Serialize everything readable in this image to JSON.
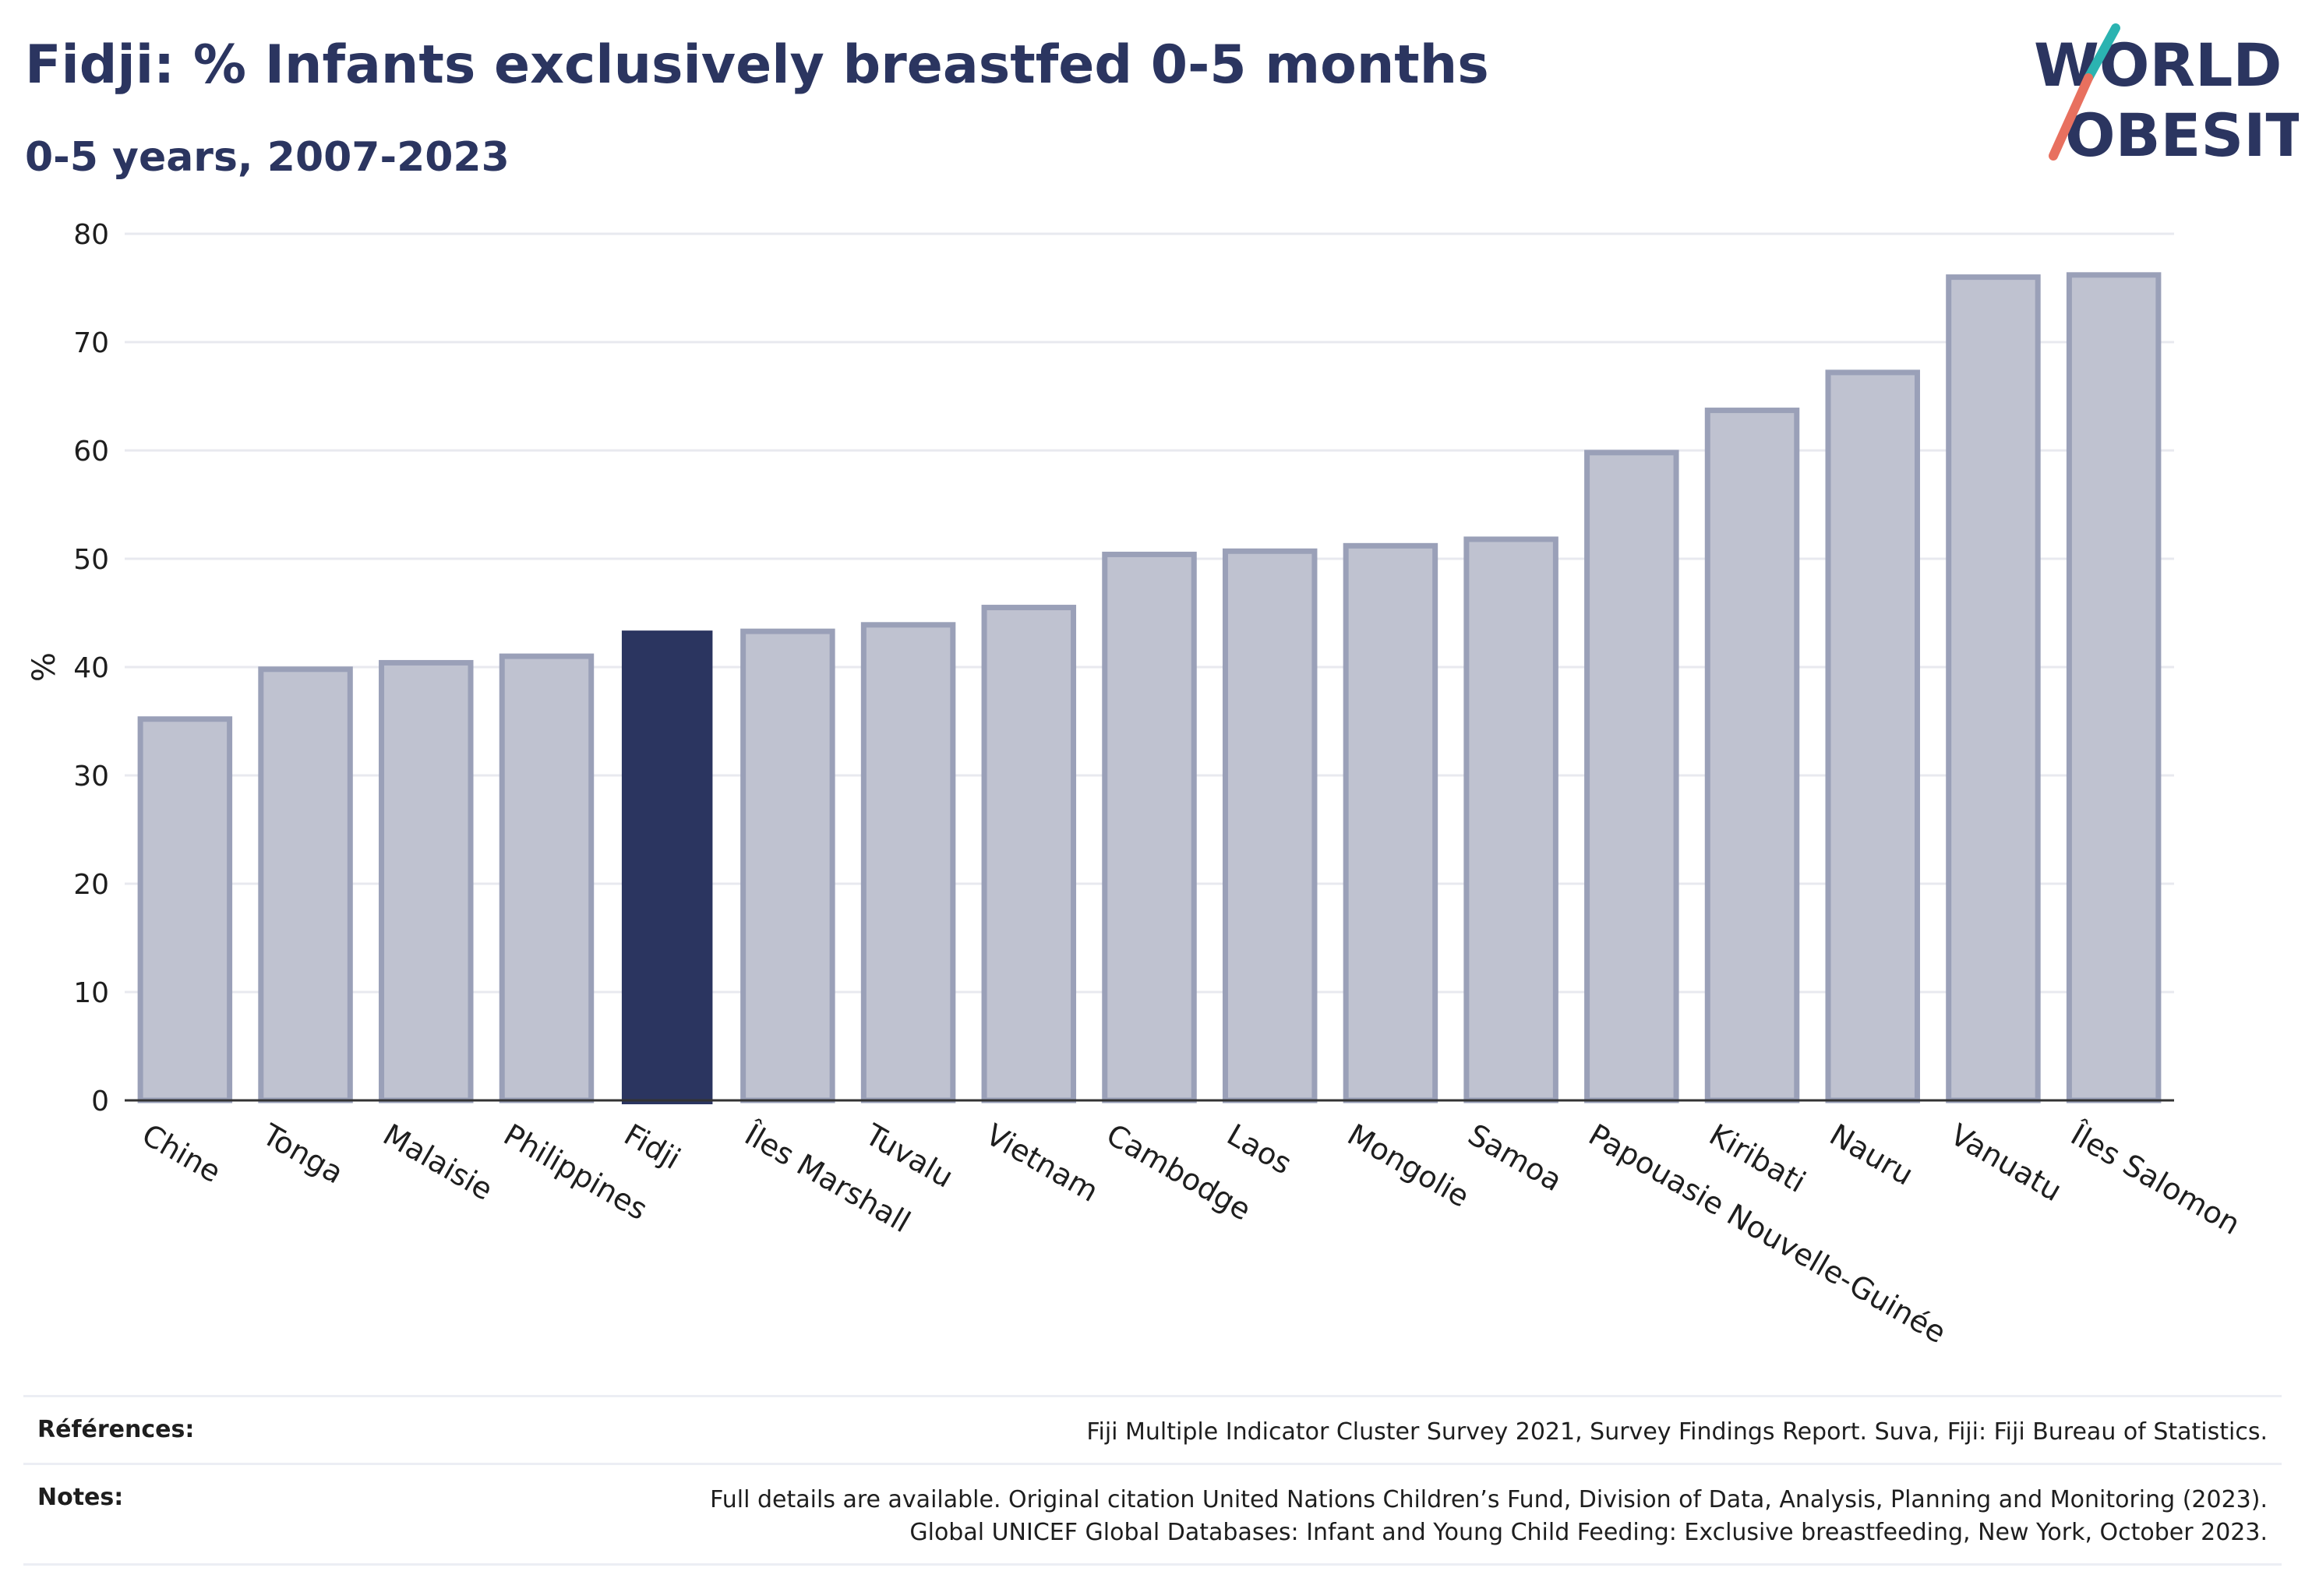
{
  "header": {
    "title": "Fidji: % Infants exclusively breastfed 0-5 months",
    "subtitle": "0-5 years, 2007-2023"
  },
  "logo": {
    "line1": "WORLD",
    "line2": "OBESITY",
    "icon": "world-obesity-logo"
  },
  "colors": {
    "highlight": "#2b3560",
    "bar_fill": "#bfc2d0",
    "bar_stroke": "#9aa0b8",
    "grid": "#e8e9ef",
    "logo_teal": "#2bb3b1",
    "logo_coral": "#e8705f"
  },
  "chart_data": {
    "type": "bar",
    "title": "Fidji: % Infants exclusively breastfed 0-5 months",
    "subtitle": "0-5 years, 2007-2023",
    "xlabel": "",
    "ylabel": "%",
    "ylim": [
      0,
      80
    ],
    "yticks": [
      0,
      10,
      20,
      30,
      40,
      50,
      60,
      70,
      80
    ],
    "grid": true,
    "highlight": "Fidji",
    "categories": [
      "Chine",
      "Tonga",
      "Malaisie",
      "Philippines",
      "Fidji",
      "Îles Marshall",
      "Tuvalu",
      "Vietnam",
      "Cambodge",
      "Laos",
      "Mongolie",
      "Samoa",
      "Papouasie Nouvelle-Guinée",
      "Kiribati",
      "Nauru",
      "Vanuatu",
      "Îles Salomon"
    ],
    "values": [
      35.2,
      39.8,
      40.4,
      41.0,
      43.3,
      43.3,
      43.9,
      45.5,
      50.4,
      50.7,
      51.2,
      51.8,
      59.8,
      63.7,
      67.2,
      76.0,
      76.2
    ]
  },
  "footer": {
    "references_label": "Références:",
    "references_text": "Fiji Multiple Indicator Cluster Survey 2021, Survey Findings Report. Suva, Fiji: Fiji Bureau of Statistics.",
    "notes_label": "Notes:",
    "notes_line1": "Full details are available. Original citation United Nations Children’s Fund, Division of Data, Analysis, Planning and Monitoring (2023).",
    "notes_line2": "Global UNICEF Global Databases: Infant and Young Child Feeding: Exclusive breastfeeding, New York, October 2023."
  }
}
